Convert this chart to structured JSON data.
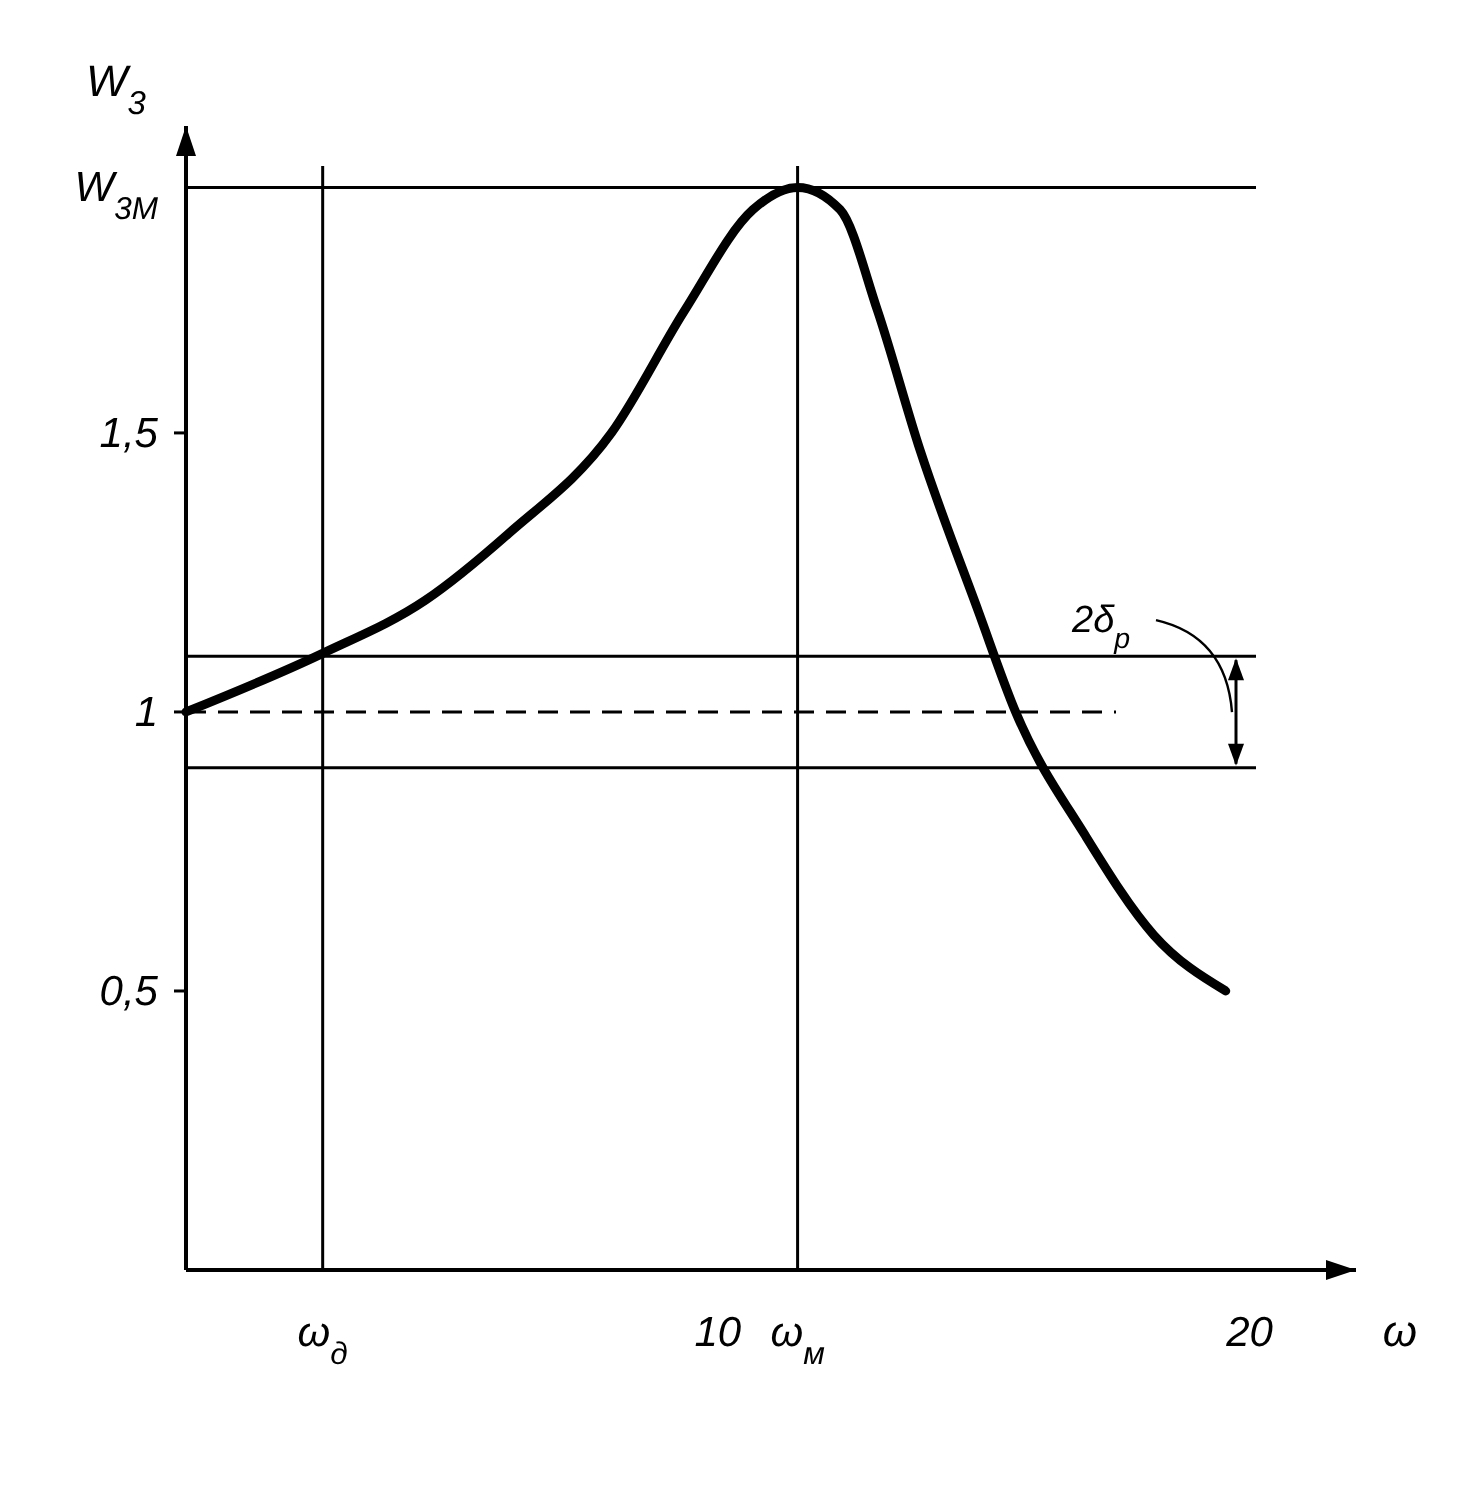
{
  "chart_data": {
    "type": "line",
    "xlabel": "ω",
    "ylabel": "W$_{3}$",
    "xlim": [
      0,
      22
    ],
    "ylim": [
      0,
      2.05
    ],
    "xticks": [
      {
        "value": 2.57,
        "label": "ω$_{д}$"
      },
      10,
      {
        "value": 11.5,
        "label": "ω$_{м}$"
      },
      20
    ],
    "yticks": [
      {
        "value": 0.5,
        "label": "0,5"
      },
      1,
      {
        "value": 1.5,
        "label": "1,5"
      }
    ],
    "series": [
      {
        "color": "#000000",
        "x": [
          0,
          2.57,
          4.5,
          6.07,
          8,
          9.38,
          10.66,
          11.5,
          12.3,
          13,
          13.8,
          14.9,
          15.6,
          16.9,
          18.2,
          19.55
        ],
        "values": [
          1,
          1.105,
          1.2,
          1.32,
          1.5,
          1.72,
          1.9,
          1.94,
          1.9,
          1.72,
          1.47,
          1.18,
          1.0,
          0.78,
          0.6,
          0.5
        ]
      }
    ],
    "ref_lines": [
      {
        "axis": "x",
        "value": 2.57
      },
      {
        "axis": "x",
        "value": 11.5
      },
      {
        "axis": "y",
        "value": 1.94
      },
      {
        "axis": "y",
        "value": 1,
        "line_style": "dashed"
      },
      {
        "axis": "y",
        "value": 1.1
      },
      {
        "axis": "y",
        "value": 0.9
      }
    ],
    "annotations": [
      "2δ$_{р}$",
      {
        "text": "W$_{3M}$",
        "x": 0,
        "y": 1.94
      }
    ]
  }
}
